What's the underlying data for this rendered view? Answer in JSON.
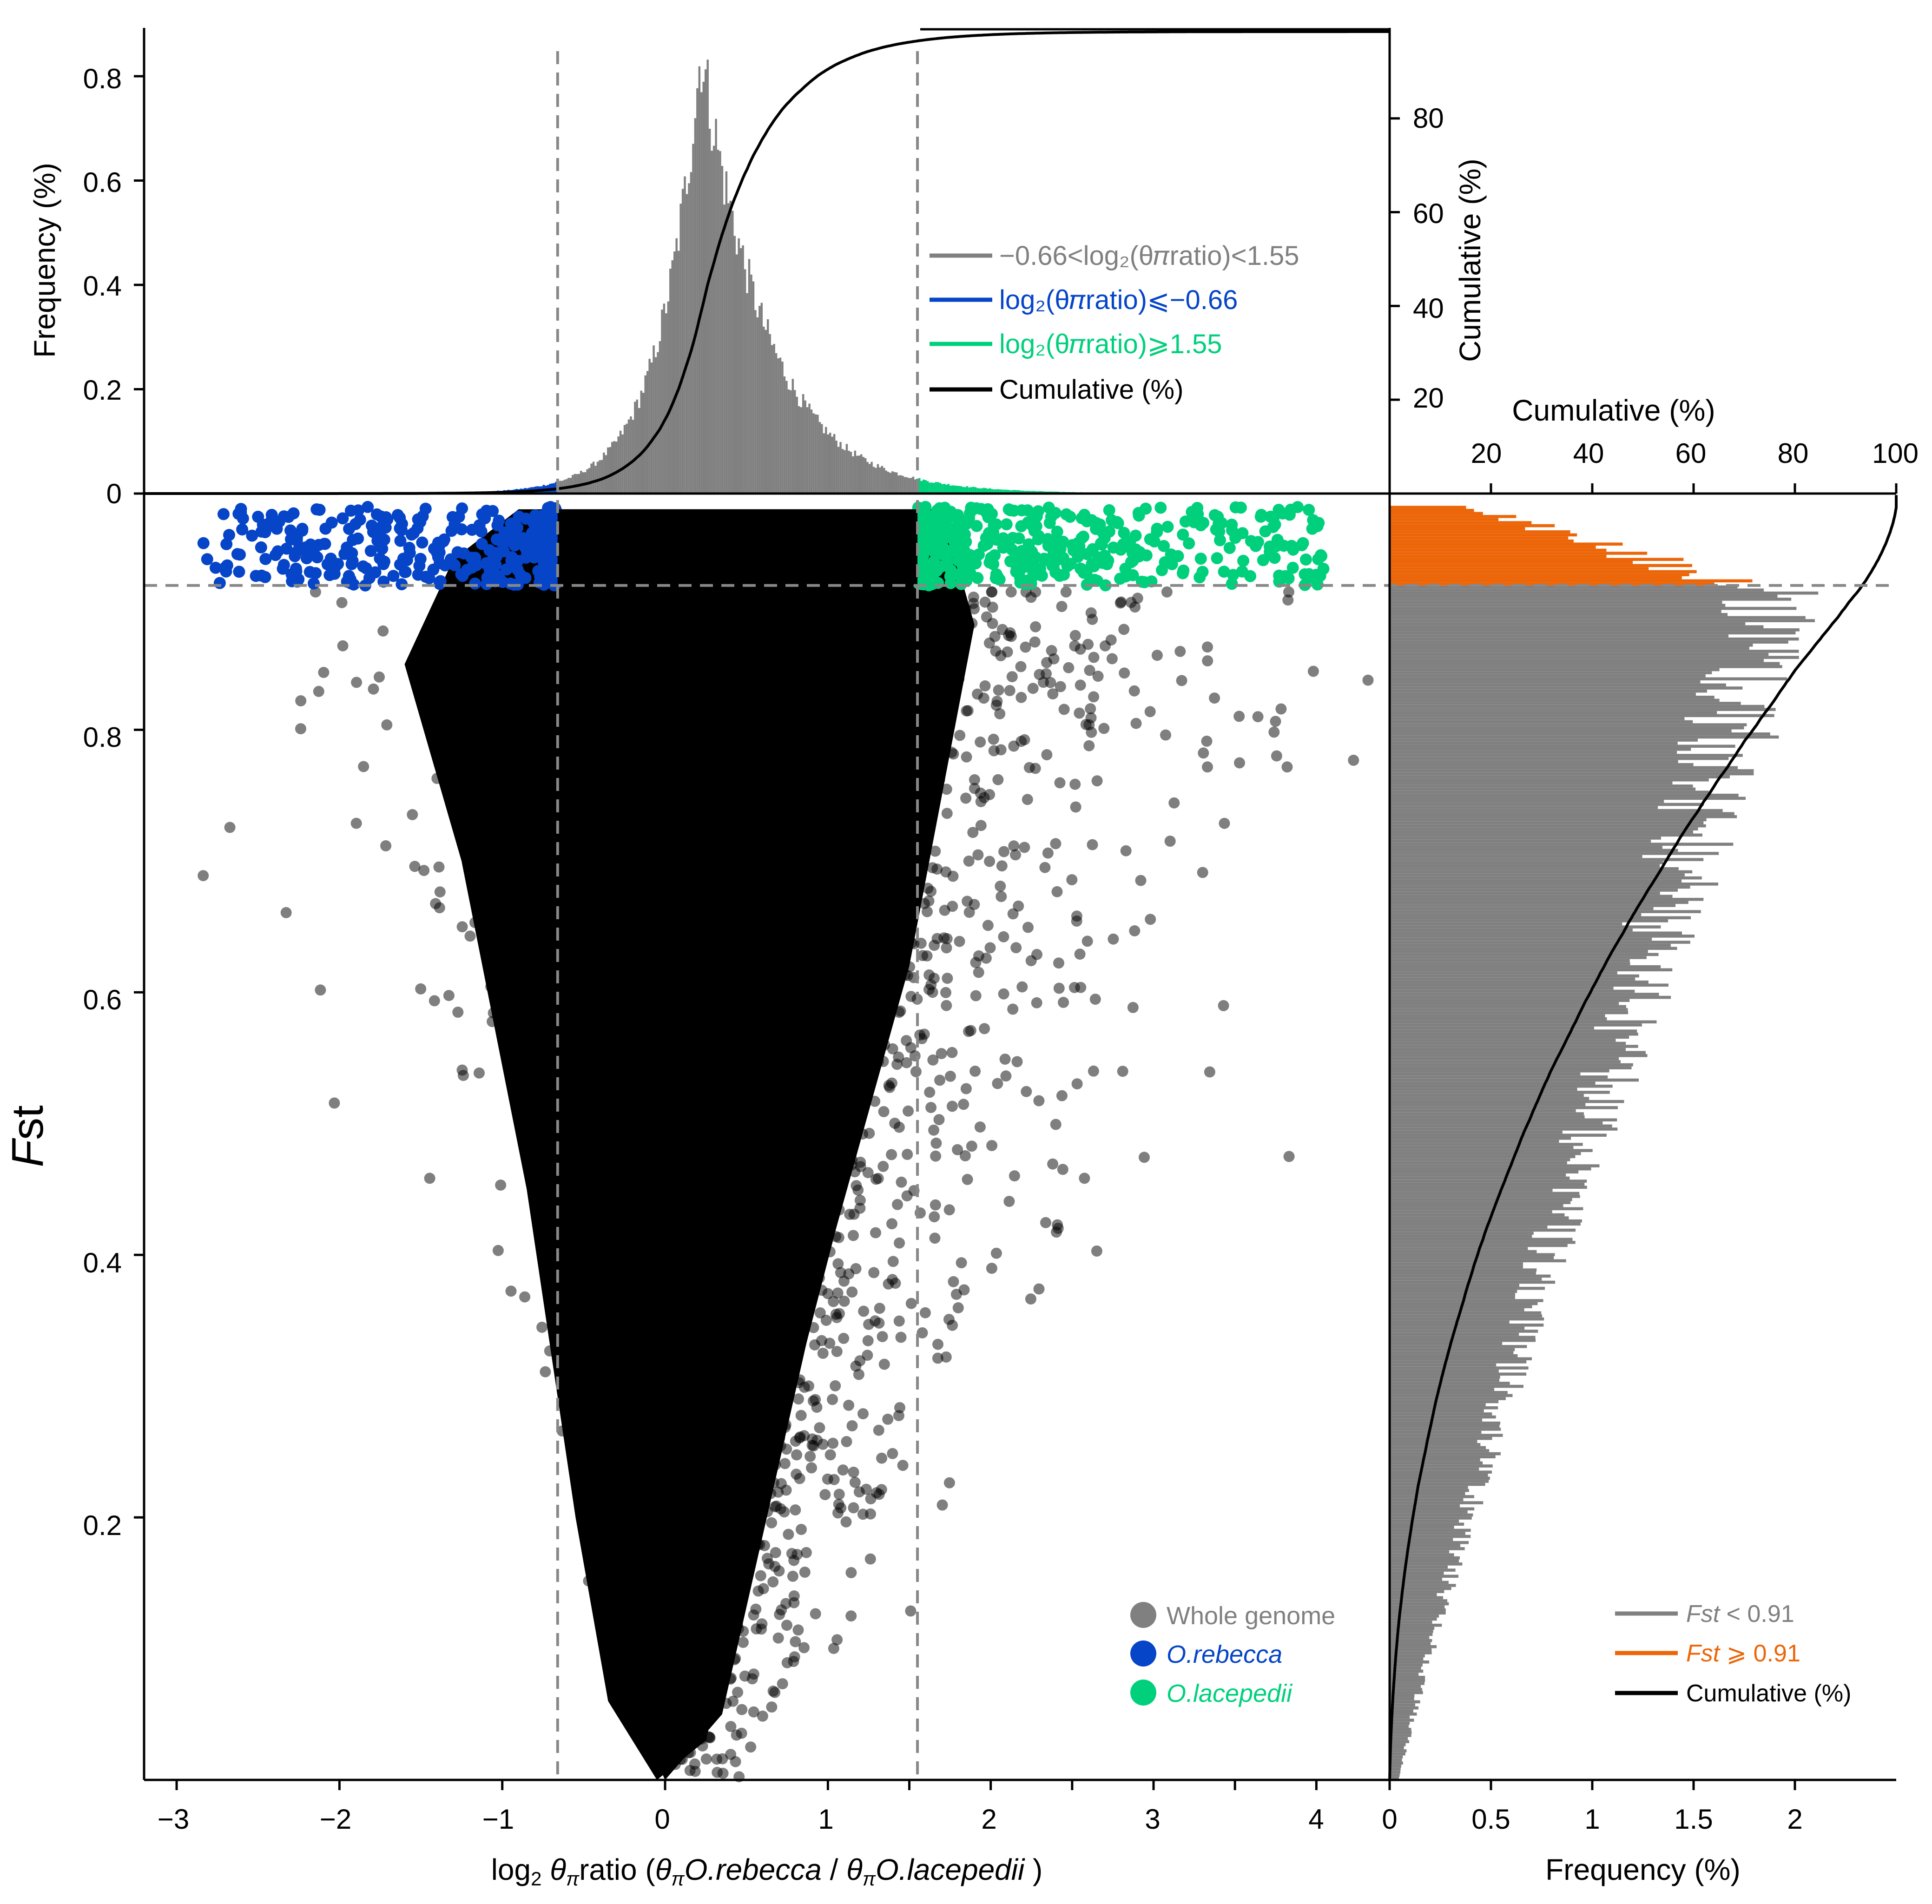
{
  "colors": {
    "gray": "#808080",
    "blue": "#0645c8",
    "green": "#00d07c",
    "orange": "#ec6609",
    "black": "#000000",
    "dash": "#888888"
  },
  "chart_data": [
    {
      "id": "top-histogram",
      "type": "bar",
      "title": "",
      "ylabel": "Frequency (%)",
      "y2label": "Cumulative (%)",
      "xlim": [
        -3.2,
        4.45
      ],
      "ylim": [
        0,
        0.89
      ],
      "y2lim": [
        0,
        99
      ],
      "yticks": [
        "0",
        "0.2",
        "0.4",
        "0.6",
        "0.8"
      ],
      "y2ticks": [
        "20",
        "40",
        "60",
        "80"
      ],
      "thresholds": [
        -0.66,
        1.55
      ],
      "series": [
        {
          "name": "−0.66<log2(θπratio)<1.55",
          "color": "#808080",
          "range": [
            -0.66,
            1.55
          ]
        },
        {
          "name": "log2(θπratio)⩽−0.66",
          "color": "#0645c8",
          "range": [
            -3.2,
            -0.66
          ]
        },
        {
          "name": "log2(θπratio)⩾1.55",
          "color": "#00d07c",
          "range": [
            1.55,
            4.45
          ]
        },
        {
          "name": "Cumulative (%)",
          "color": "#000000",
          "type": "line"
        }
      ],
      "distribution": {
        "peak_x": 0.22,
        "peak_freq": 0.85,
        "left_scale": 0.26,
        "right_scale": 0.42
      },
      "legend": {
        "gray_label": "−0.66<log₂(θ𝜋ratio)<1.55",
        "blue_label": "log₂(θ𝜋ratio)⩽−0.66",
        "green_label": "log₂(θ𝜋ratio)⩾1.55",
        "cum_label": "Cumulative (%)"
      }
    },
    {
      "id": "main-scatter",
      "type": "scatter",
      "xlabel": "log₂ θπratio  (θπO.rebecca / θπO.lacepedii)",
      "ylabel": "Fst",
      "xlim": [
        -3.2,
        4.45
      ],
      "ylim": [
        0,
        0.98
      ],
      "xticks": [
        "−3",
        "−2",
        "−1",
        "0",
        "1",
        "2",
        "3",
        "4"
      ],
      "yticks": [
        "0.2",
        "0.4",
        "0.6",
        "0.8"
      ],
      "fst_threshold": 0.91,
      "ratio_thresholds": [
        -0.66,
        1.55
      ],
      "series": [
        {
          "name": "Whole genome",
          "color": "#808080"
        },
        {
          "name": "O.rebecca",
          "color": "#0645c8"
        },
        {
          "name": "O.lacepedii",
          "color": "#00d07c"
        }
      ],
      "legend": {
        "whole": "Whole genome",
        "rebecca": "O.rebecca",
        "lacepedii": "O.lacepedii"
      }
    },
    {
      "id": "right-histogram",
      "type": "bar",
      "orientation": "horizontal",
      "xlabel": "Frequency (%)",
      "x2label": "Cumulative (%)",
      "xlim": [
        0,
        2.5
      ],
      "x2lim": [
        0,
        100
      ],
      "ylim": [
        0,
        0.98
      ],
      "xticks": [
        "0",
        "0.5",
        "1",
        "1.5",
        "2"
      ],
      "x2ticks": [
        "20",
        "40",
        "60",
        "80",
        "100"
      ],
      "fst_threshold": 0.91,
      "series": [
        {
          "name": "Fst < 0.91",
          "color": "#808080"
        },
        {
          "name": "Fst ⩾ 0.91",
          "color": "#ec6609"
        },
        {
          "name": "Cumulative (%)",
          "color": "#000000",
          "type": "line"
        }
      ],
      "legend": {
        "lt_italic": "Fst",
        "lt_rest": " < 0.91",
        "ge_italic": "Fst",
        "ge_rest": " ⩾ 0.91",
        "cum_label": "Cumulative (%)"
      }
    }
  ],
  "zero_label": "0"
}
